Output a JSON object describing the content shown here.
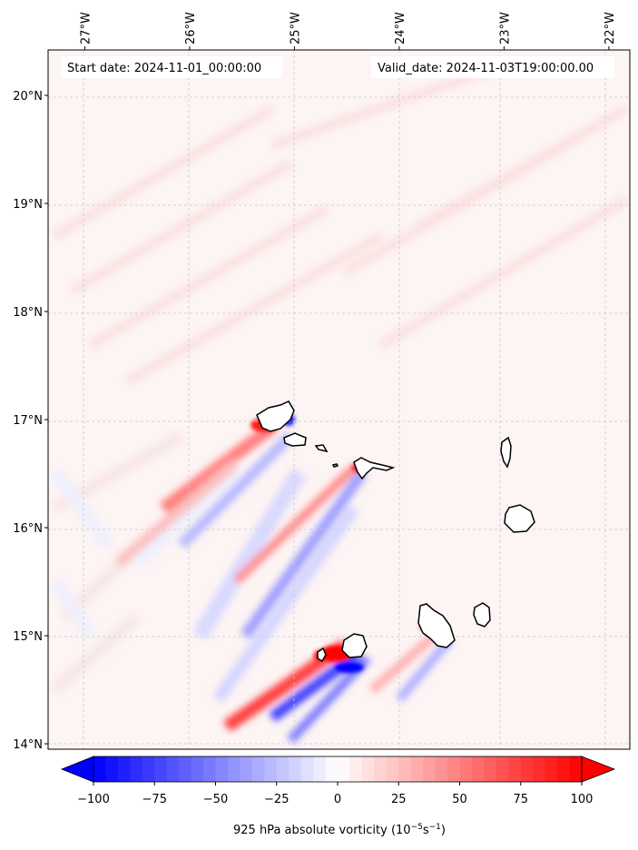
{
  "header": {
    "start_date": "Start date: 2024-11-01_00:00:00",
    "valid_date": "Valid_date: 2024-11-03T19:00:00.00"
  },
  "map": {
    "lon_range": [
      -27.35,
      -21.8
    ],
    "lat_range": [
      13.95,
      20.42
    ],
    "gridlines": true,
    "lon_ticks": [
      {
        "value": -27,
        "label": "27°W"
      },
      {
        "value": -26,
        "label": "26°W"
      },
      {
        "value": -25,
        "label": "25°W"
      },
      {
        "value": -24,
        "label": "24°W"
      },
      {
        "value": -23,
        "label": "23°W"
      },
      {
        "value": -22,
        "label": "22°W"
      }
    ],
    "lat_ticks": [
      {
        "value": 14,
        "label": "14°N"
      },
      {
        "value": 15,
        "label": "15°N"
      },
      {
        "value": 16,
        "label": "16°N"
      },
      {
        "value": 17,
        "label": "17°N"
      },
      {
        "value": 18,
        "label": "18°N"
      },
      {
        "value": 19,
        "label": "19°N"
      },
      {
        "value": 20,
        "label": "20°N"
      }
    ],
    "field": "925 hPa absolute vorticity",
    "colormap": "bwr",
    "colors": {
      "negative": "#0000ff",
      "zero": "#ffffff",
      "positive": "#ff0000",
      "background_tint": "#fdf3f3"
    }
  },
  "colorbar": {
    "label": "925 hPa absolute vorticity (10",
    "label_exp1": "−5",
    "label_mid": "s",
    "label_exp2": "−1",
    "label_end": ")",
    "range": [
      -100,
      100
    ],
    "ticks": [
      {
        "value": -100,
        "label": "−100"
      },
      {
        "value": -75,
        "label": "−75"
      },
      {
        "value": -50,
        "label": "−50"
      },
      {
        "value": -25,
        "label": "−25"
      },
      {
        "value": 0,
        "label": "0"
      },
      {
        "value": 25,
        "label": "25"
      },
      {
        "value": 50,
        "label": "50"
      },
      {
        "value": 75,
        "label": "75"
      },
      {
        "value": 100,
        "label": "100"
      }
    ],
    "extend": "both"
  }
}
